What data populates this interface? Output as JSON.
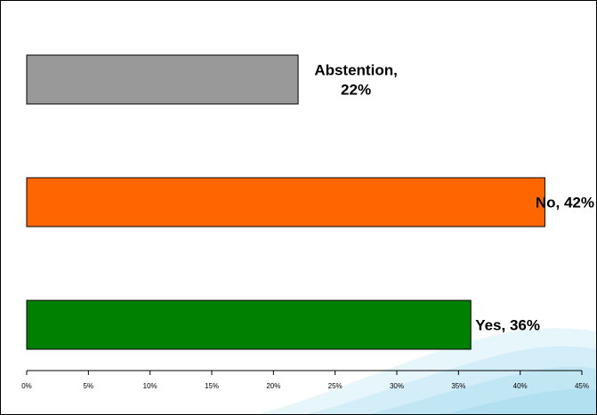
{
  "chart_data": {
    "type": "bar",
    "orientation": "horizontal",
    "categories": [
      "Abstention",
      "No",
      "Yes"
    ],
    "values": [
      22,
      42,
      36
    ],
    "value_unit": "%",
    "data_labels": [
      [
        "Abstention,",
        "22%"
      ],
      [
        "No, 42%"
      ],
      [
        "Yes, 36%"
      ]
    ],
    "colors": [
      "#999999",
      "#ff6600",
      "#008000"
    ],
    "xlim": [
      0,
      45
    ],
    "x_ticks": [
      0,
      5,
      10,
      15,
      20,
      25,
      30,
      35,
      40,
      45
    ],
    "x_tick_labels": [
      "0%",
      "5%",
      "10%",
      "15%",
      "20%",
      "25%",
      "30%",
      "35%",
      "40%",
      "45%"
    ],
    "title": "",
    "xlabel": "",
    "ylabel": "",
    "grid": false,
    "legend": "none",
    "background_decoration": "light-blue-swoosh"
  }
}
